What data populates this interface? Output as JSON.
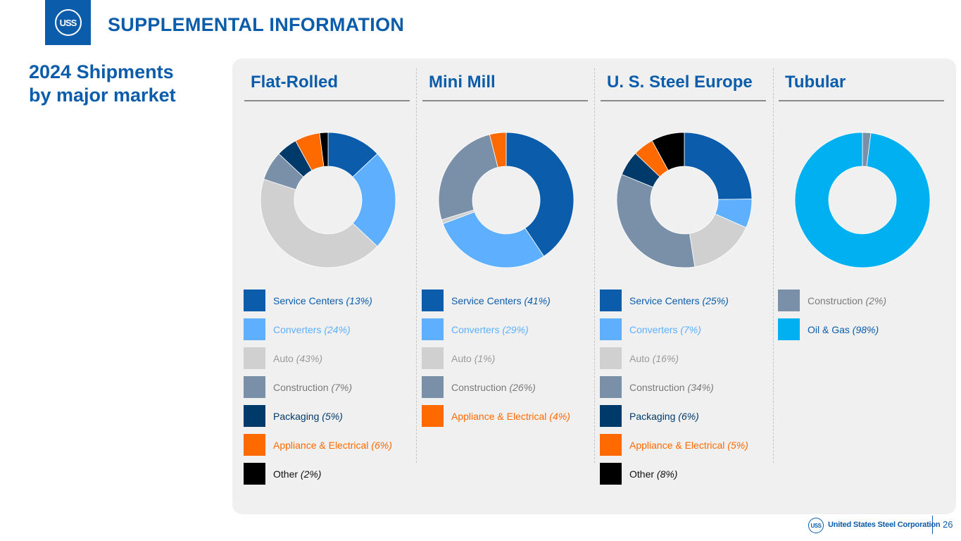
{
  "header": {
    "logo_text": "USS",
    "title": "SUPPLEMENTAL INFORMATION"
  },
  "subtitle": {
    "line1": "2024 Shipments",
    "line2": "by major market"
  },
  "colors": {
    "brand": "#0b5cab",
    "panel": "#f0f0f0"
  },
  "chart_data": [
    {
      "type": "pie",
      "title": "Flat-Rolled",
      "categories": [
        "Service Centers",
        "Converters",
        "Auto",
        "Construction",
        "Packaging",
        "Appliance & Electrical",
        "Other"
      ],
      "values": [
        13,
        24,
        43,
        7,
        5,
        6,
        2
      ],
      "pct_labels": [
        "(13%)",
        "(24%)",
        "(43%)",
        "(7%)",
        "(5%)",
        "(6%)",
        "(2%)"
      ],
      "colors": [
        "#0b5cab",
        "#5eb0ff",
        "#d0d0d0",
        "#7a90a8",
        "#003a6b",
        "#ff6a00",
        "#000000"
      ],
      "label_colors": [
        "#0b5cab",
        "#5eb0ff",
        "#9a9a9a",
        "#7a7a7a",
        "#003a6b",
        "#ff6a00",
        "#111111"
      ]
    },
    {
      "type": "pie",
      "title": "Mini Mill",
      "categories": [
        "Service Centers",
        "Converters",
        "Auto",
        "Construction",
        "Appliance & Electrical"
      ],
      "values": [
        41,
        29,
        1,
        26,
        4
      ],
      "pct_labels": [
        "(41%)",
        "(29%)",
        "(1%)",
        "(26%)",
        "(4%)"
      ],
      "colors": [
        "#0b5cab",
        "#5eb0ff",
        "#d0d0d0",
        "#7a90a8",
        "#ff6a00"
      ],
      "label_colors": [
        "#0b5cab",
        "#5eb0ff",
        "#9a9a9a",
        "#7a7a7a",
        "#ff6a00"
      ]
    },
    {
      "type": "pie",
      "title": "U. S. Steel Europe",
      "categories": [
        "Service Centers",
        "Converters",
        "Auto",
        "Construction",
        "Packaging",
        "Appliance & Electrical",
        "Other"
      ],
      "values": [
        25,
        7,
        16,
        34,
        6,
        5,
        8
      ],
      "pct_labels": [
        "(25%)",
        "(7%)",
        "(16%)",
        "(34%)",
        "(6%)",
        "(5%)",
        "(8%)"
      ],
      "colors": [
        "#0b5cab",
        "#5eb0ff",
        "#d0d0d0",
        "#7a90a8",
        "#003a6b",
        "#ff6a00",
        "#000000"
      ],
      "label_colors": [
        "#0b5cab",
        "#5eb0ff",
        "#9a9a9a",
        "#7a7a7a",
        "#003a6b",
        "#ff6a00",
        "#111111"
      ]
    },
    {
      "type": "pie",
      "title": "Tubular",
      "categories": [
        "Construction",
        "Oil & Gas"
      ],
      "values": [
        2,
        98
      ],
      "pct_labels": [
        "(2%)",
        "(98%)"
      ],
      "colors": [
        "#7a90a8",
        "#00b0f0"
      ],
      "label_colors": [
        "#7a7a7a",
        "#0b5cab"
      ]
    }
  ],
  "footer": {
    "logo_text": "USS",
    "company": "United States Steel Corporation",
    "page_number": "26"
  }
}
